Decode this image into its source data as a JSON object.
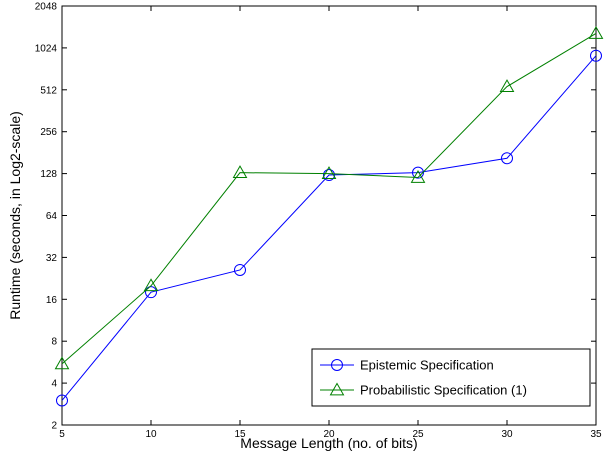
{
  "chart_data": {
    "type": "line",
    "title": "",
    "xlabel": "Message Length (no. of bits)",
    "ylabel": "Runtime (seconds, in Log2-scale)",
    "x": [
      5,
      10,
      15,
      20,
      25,
      30,
      35
    ],
    "xlim": [
      5,
      35
    ],
    "ylim": [
      2,
      2048
    ],
    "yscale": "log2",
    "x_ticks": [
      "5",
      "10",
      "15",
      "20",
      "25",
      "30",
      "35"
    ],
    "y_ticks": [
      "2",
      "4",
      "8",
      "16",
      "32",
      "64",
      "128",
      "256",
      "512",
      "1024",
      "2048"
    ],
    "grid": false,
    "legend_position": "bottom-right",
    "series": [
      {
        "name": "Epistemic Specification",
        "color": "#0000ff",
        "marker": "circle",
        "values": [
          3,
          18,
          26,
          125,
          130,
          165,
          900
        ]
      },
      {
        "name": "Probabilistic Specification (1)",
        "color": "#008000",
        "marker": "triangle",
        "values": [
          5.5,
          20,
          130,
          128,
          120,
          540,
          1300
        ]
      }
    ]
  }
}
